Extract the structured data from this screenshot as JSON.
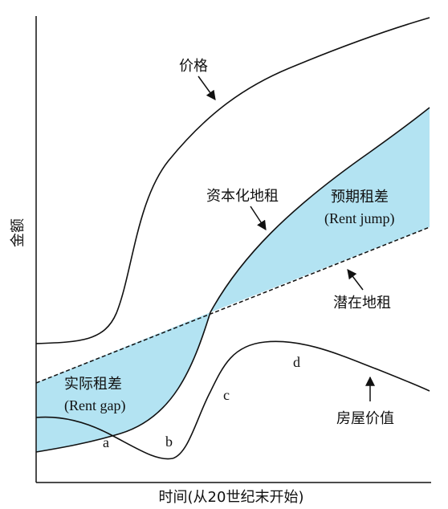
{
  "axes": {
    "x_label": "时间(从20世纪末开始)",
    "y_label": "金额"
  },
  "labels": {
    "price": "价格",
    "capitalized_rent": "资本化地租",
    "rent_jump_cn": "预期租差",
    "rent_jump_en": "(Rent jump)",
    "potential_rent": "潜在地租",
    "rent_gap_cn": "实际租差",
    "rent_gap_en": "(Rent gap)",
    "house_value": "房屋价值"
  },
  "points": {
    "a": "a",
    "b": "b",
    "c": "c",
    "d": "d"
  },
  "colors": {
    "shade": "#b3e3f2",
    "line": "#111111"
  }
}
